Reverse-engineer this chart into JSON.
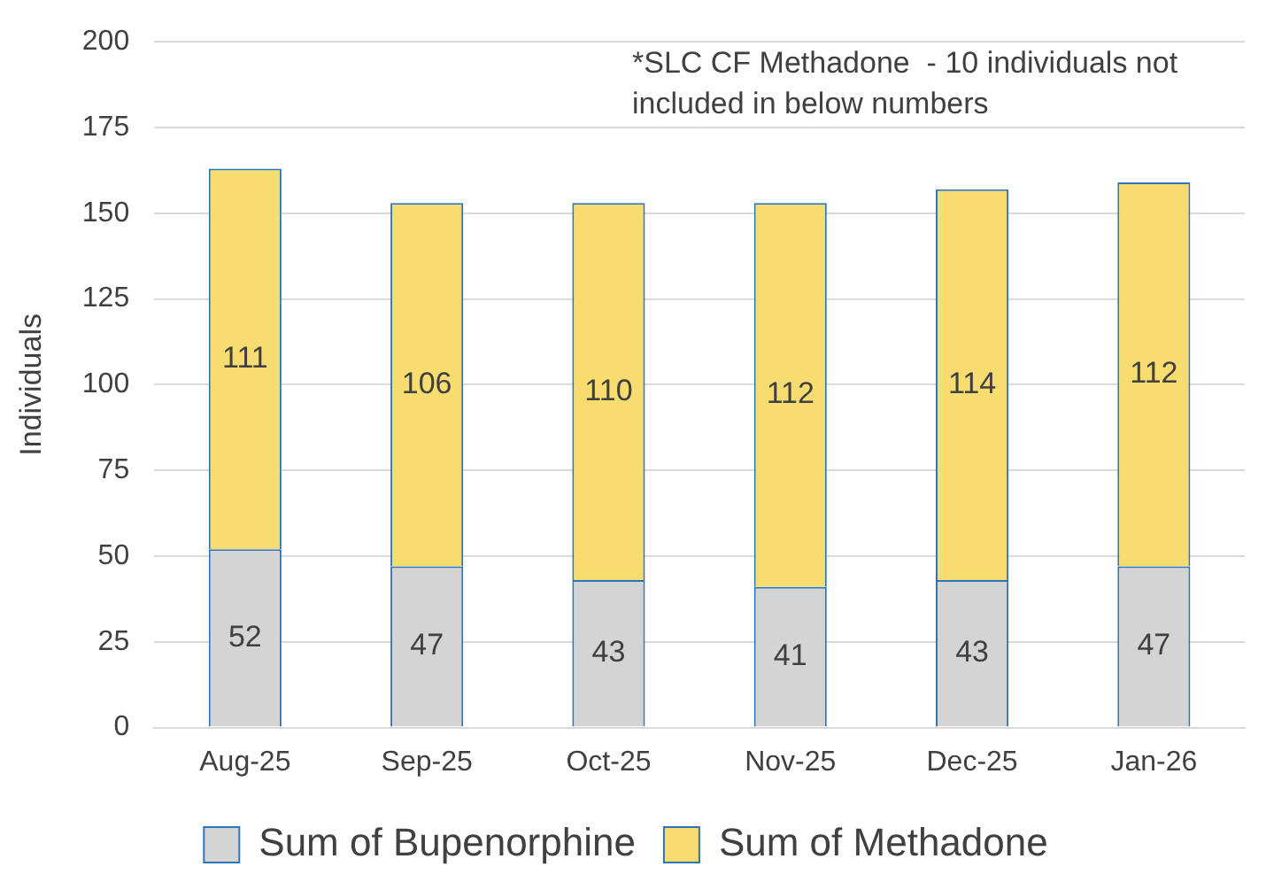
{
  "chart_data": {
    "type": "bar",
    "stacked": true,
    "ylabel": "Individuals",
    "categories": [
      "Aug-25",
      "Sep-25",
      "Oct-25",
      "Nov-25",
      "Dec-25",
      "Jan-26"
    ],
    "series": [
      {
        "name": "Sum of Bupenorphine",
        "color": "#d4d4d4",
        "values": [
          52,
          47,
          43,
          41,
          43,
          47
        ]
      },
      {
        "name": "Sum of Methadone",
        "color": "#f7dc6f",
        "values": [
          111,
          106,
          110,
          112,
          114,
          112
        ]
      }
    ],
    "ylim": [
      0,
      200
    ],
    "yticks": [
      0,
      25,
      50,
      75,
      100,
      125,
      150,
      175,
      200
    ],
    "grid": "y",
    "legend": "bottom",
    "data_labels": true,
    "annotations": [
      "*SLC CF Methadone  - 10 individuals not included in below numbers"
    ]
  }
}
